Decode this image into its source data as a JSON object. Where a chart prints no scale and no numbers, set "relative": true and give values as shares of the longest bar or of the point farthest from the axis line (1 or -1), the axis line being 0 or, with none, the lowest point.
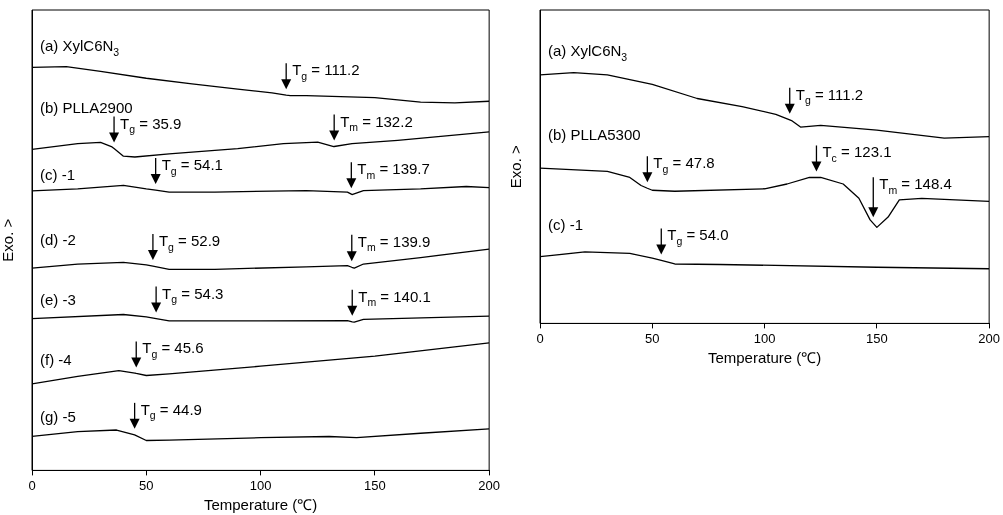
{
  "chart_data": [
    {
      "type": "line",
      "relative": true,
      "xlabel": "Temperature (℃)",
      "ylabel": "Exo. >",
      "xlim": [
        0,
        200
      ],
      "xticks": [
        0,
        50,
        100,
        150,
        200
      ],
      "grid": false,
      "legend": false,
      "series": [
        {
          "name": "(a) XylC6N$_{3}$",
          "color": "#000000",
          "x": [
            0,
            15,
            30,
            50,
            70,
            90,
            105,
            111.2,
            113,
            120,
            150,
            170,
            185,
            200
          ],
          "values": [
            0.998,
            1.0,
            0.988,
            0.971,
            0.957,
            0.944,
            0.935,
            0.929,
            0.928,
            0.928,
            0.923,
            0.912,
            0.91,
            0.914
          ]
        },
        {
          "name": "(b) PLLA2900",
          "color": "#000000",
          "x": [
            0,
            20,
            30,
            35,
            35.9,
            40,
            45,
            60,
            90,
            110,
            125,
            132,
            132.2,
            140,
            160,
            200
          ],
          "values": [
            0.795,
            0.809,
            0.812,
            0.801,
            0.797,
            0.778,
            0.776,
            0.784,
            0.797,
            0.809,
            0.813,
            0.802,
            0.802,
            0.809,
            0.817,
            0.838
          ]
        },
        {
          "name": "(c) -1",
          "color": "#000000",
          "x": [
            0,
            20,
            40,
            50,
            54.1,
            60,
            80,
            120,
            138,
            139.7,
            140,
            145,
            170,
            190,
            200
          ],
          "values": [
            0.692,
            0.697,
            0.706,
            0.697,
            0.694,
            0.689,
            0.689,
            0.693,
            0.689,
            0.684,
            0.683,
            0.693,
            0.697,
            0.703,
            0.7
          ]
        },
        {
          "name": "(d) -2",
          "color": "#000000",
          "x": [
            0,
            20,
            40,
            50,
            52.9,
            60,
            80,
            120,
            138,
            139.9,
            141,
            145,
            170,
            200
          ],
          "values": [
            0.501,
            0.511,
            0.515,
            0.509,
            0.506,
            0.498,
            0.498,
            0.504,
            0.507,
            0.503,
            0.501,
            0.511,
            0.527,
            0.548
          ]
        },
        {
          "name": "(e) -3",
          "color": "#000000",
          "x": [
            0,
            40,
            50,
            54.3,
            60,
            100,
            138,
            140.1,
            141,
            145,
            200
          ],
          "values": [
            0.376,
            0.386,
            0.38,
            0.376,
            0.37,
            0.37,
            0.371,
            0.368,
            0.367,
            0.374,
            0.382
          ]
        },
        {
          "name": "(f) -4",
          "color": "#000000",
          "x": [
            0,
            20,
            38,
            45,
            45.6,
            50,
            60,
            100,
            150,
            200
          ],
          "values": [
            0.214,
            0.233,
            0.247,
            0.241,
            0.24,
            0.235,
            0.239,
            0.258,
            0.283,
            0.316
          ]
        },
        {
          "name": "(g) -5",
          "color": "#000000",
          "x": [
            0,
            20,
            37,
            44.9,
            45,
            50,
            60,
            100,
            130,
            142,
            170,
            200
          ],
          "values": [
            0.084,
            0.096,
            0.1,
            0.088,
            0.088,
            0.074,
            0.075,
            0.081,
            0.084,
            0.081,
            0.092,
            0.103
          ]
        }
      ],
      "annotations": [
        {
          "text": "T$_{g}$ = 111.2",
          "x": 111.2,
          "y": 0.929
        },
        {
          "text": "T$_{g}$ = 35.9",
          "x": 35.9,
          "y": 0.797
        },
        {
          "text": "T$_{m}$ = 132.2",
          "x": 132.2,
          "y": 0.802
        },
        {
          "text": "T$_{g}$ = 54.1",
          "x": 54.1,
          "y": 0.694
        },
        {
          "text": "T$_{m}$ = 139.7",
          "x": 139.7,
          "y": 0.684
        },
        {
          "text": "T$_{g}$ = 52.9",
          "x": 52.9,
          "y": 0.506
        },
        {
          "text": "T$_{m}$ = 139.9",
          "x": 139.9,
          "y": 0.503
        },
        {
          "text": "T$_{g}$ = 54.3",
          "x": 54.3,
          "y": 0.376
        },
        {
          "text": "T$_{m}$ = 140.1",
          "x": 140.1,
          "y": 0.368
        },
        {
          "text": "T$_{g}$ = 45.6",
          "x": 45.6,
          "y": 0.24
        },
        {
          "text": "T$_{g}$ = 44.9",
          "x": 44.9,
          "y": 0.088
        }
      ]
    },
    {
      "type": "line",
      "relative": true,
      "xlabel": "Temperature (℃)",
      "ylabel": "Exo. >",
      "xlim": [
        0,
        200
      ],
      "xticks": [
        0,
        50,
        100,
        150,
        200
      ],
      "grid": false,
      "legend": false,
      "series": [
        {
          "name": "(a) XylC6N$_{3}$",
          "color": "#000000",
          "x": [
            0,
            15,
            30,
            50,
            70,
            90,
            105,
            111.2,
            112,
            116,
            125,
            150,
            180,
            200
          ],
          "values": [
            0.991,
            1.0,
            0.991,
            0.953,
            0.897,
            0.865,
            0.834,
            0.812,
            0.809,
            0.783,
            0.79,
            0.771,
            0.739,
            0.745
          ]
        },
        {
          "name": "(b) PLLA5300",
          "color": "#000000",
          "x": [
            0,
            30,
            40,
            45,
            47.8,
            50,
            60,
            100,
            110,
            120,
            123.1,
            125,
            135,
            142,
            147,
            148.4,
            150,
            155,
            160,
            170,
            200
          ],
          "values": [
            0.619,
            0.606,
            0.582,
            0.55,
            0.539,
            0.531,
            0.527,
            0.537,
            0.556,
            0.582,
            0.582,
            0.582,
            0.556,
            0.499,
            0.413,
            0.399,
            0.383,
            0.424,
            0.493,
            0.499,
            0.487
          ]
        },
        {
          "name": "(c) -1",
          "color": "#000000",
          "x": [
            0,
            20,
            40,
            50,
            54.0,
            60,
            80,
            150,
            200
          ],
          "values": [
            0.266,
            0.285,
            0.279,
            0.26,
            0.251,
            0.237,
            0.235,
            0.224,
            0.218
          ]
        }
      ],
      "annotations": [
        {
          "text": "T$_{g}$ = 111.2",
          "x": 111.2,
          "y": 0.812
        },
        {
          "text": "T$_{g}$ = 47.8",
          "x": 47.8,
          "y": 0.539
        },
        {
          "text": "T$_{c}$ = 123.1",
          "x": 123.1,
          "y": 0.582
        },
        {
          "text": "T$_{m}$ = 148.4",
          "x": 148.4,
          "y": 0.399
        },
        {
          "text": "T$_{g}$ = 54.0",
          "x": 54.0,
          "y": 0.251
        }
      ]
    }
  ]
}
